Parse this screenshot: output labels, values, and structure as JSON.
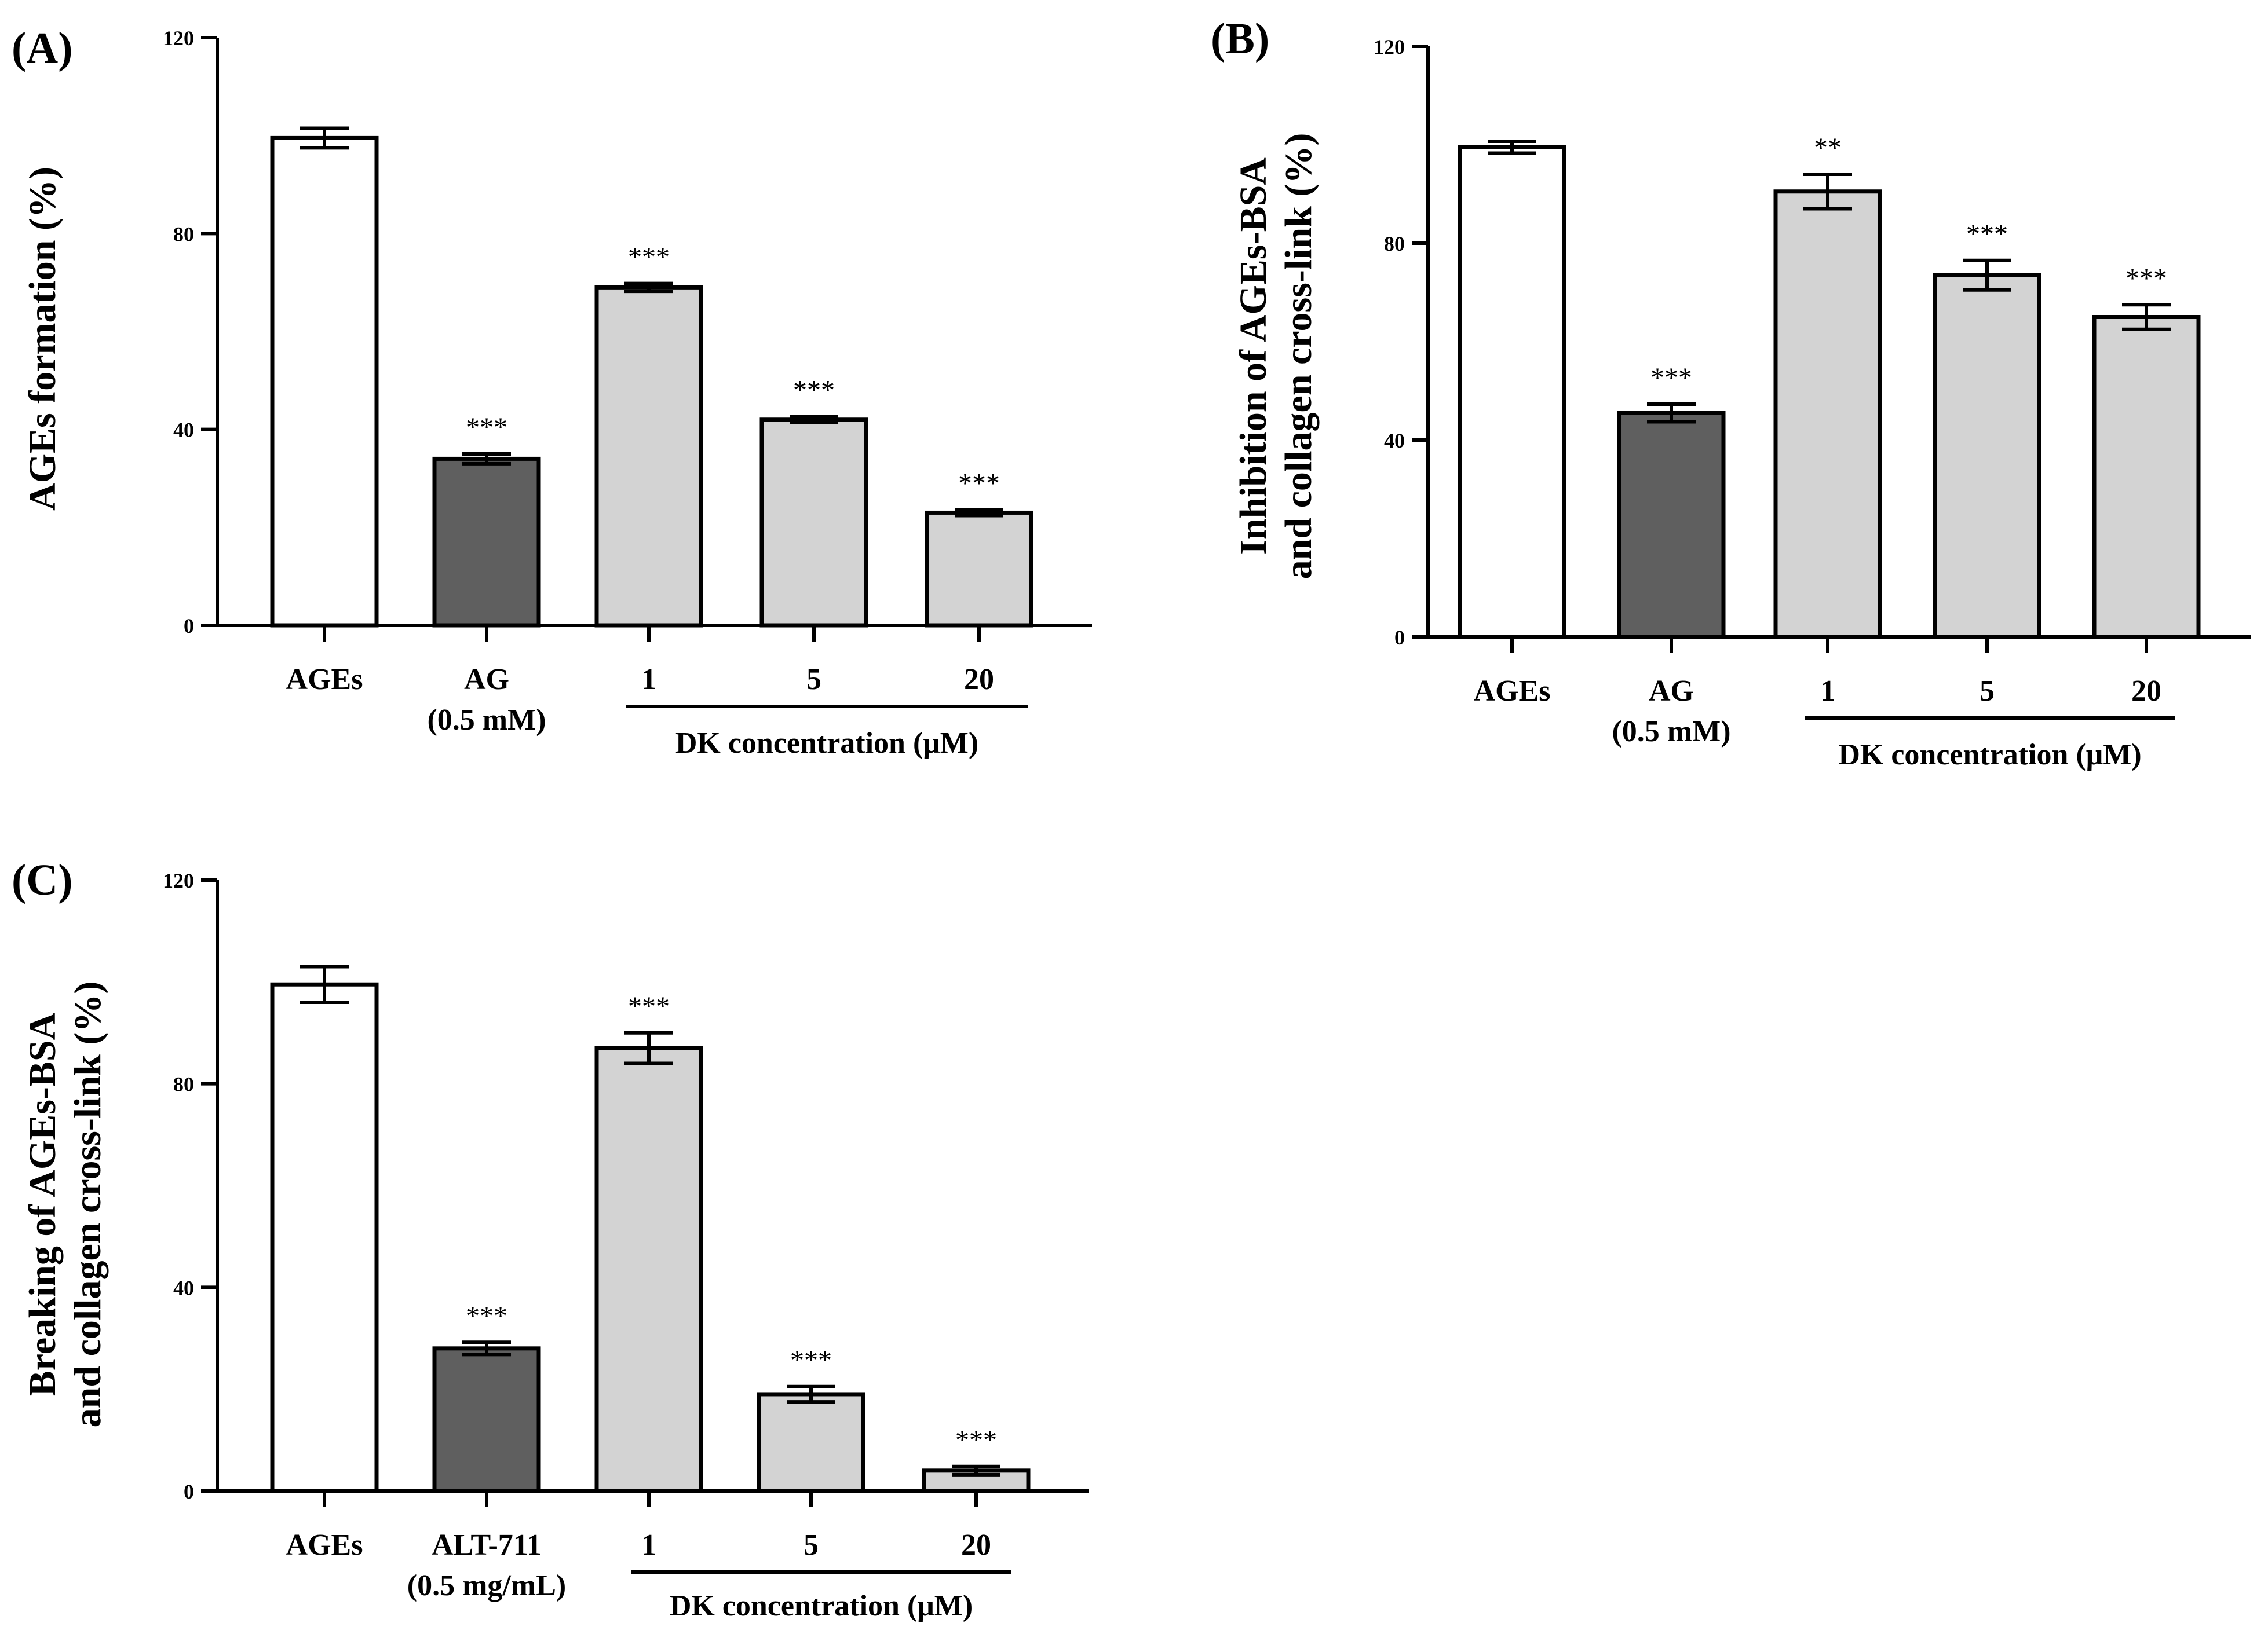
{
  "colors": {
    "control": "#ffffff",
    "positive": "#5f5f5f",
    "dk": "#d3d3d3",
    "axis": "#000000"
  },
  "chart_data": [
    {
      "panel": "(A)",
      "type": "bar",
      "ylabel": "AGEs formation (%)",
      "ylabel_lines": [
        "AGEs formation (%)"
      ],
      "ylim": [
        0,
        120
      ],
      "yticks": [
        "0",
        "40",
        "80",
        "120"
      ],
      "categories": [
        "AGEs",
        "AG",
        "1",
        "5",
        "20"
      ],
      "category_sublabels": [
        "",
        "(0.5 mM)",
        "",
        "",
        ""
      ],
      "group_label": "DK concentration  (μM)",
      "values": [
        99.5,
        34,
        69,
        42,
        23
      ],
      "errors": [
        2,
        1,
        0.8,
        0.6,
        0.6
      ],
      "significance": [
        "",
        "***",
        "***",
        "***",
        "***"
      ],
      "bar_styles": [
        "control",
        "positive",
        "dk",
        "dk",
        "dk"
      ]
    },
    {
      "panel": "(B)",
      "type": "bar",
      "ylabel": "Inhibition of AGEs-BSA and collagen cross-link (%)",
      "ylabel_lines": [
        "Inhibition of AGEs-BSA",
        "and collagen cross-link (%)"
      ],
      "ylim": [
        0,
        120
      ],
      "yticks": [
        "0",
        "40",
        "80",
        "120"
      ],
      "categories": [
        "AGEs",
        "AG",
        "1",
        "5",
        "20"
      ],
      "category_sublabels": [
        "",
        "(0.5 mM)",
        "",
        "",
        ""
      ],
      "group_label": "DK concentration  (μM)",
      "values": [
        99.5,
        45.5,
        90.5,
        73.5,
        65
      ],
      "errors": [
        1.2,
        1.8,
        3.5,
        3,
        2.5
      ],
      "significance": [
        "",
        "***",
        "**",
        "***",
        "***"
      ],
      "bar_styles": [
        "control",
        "positive",
        "dk",
        "dk",
        "dk"
      ]
    },
    {
      "panel": "(C)",
      "type": "bar",
      "ylabel": "Breaking of AGEs-BSA and collagen cross-link (%)",
      "ylabel_lines": [
        "Breaking of AGEs-BSA",
        "and collagen cross-link (%)"
      ],
      "ylim": [
        0,
        120
      ],
      "yticks": [
        "0",
        "40",
        "80",
        "120"
      ],
      "categories": [
        "AGEs",
        "ALT-711",
        "1",
        "5",
        "20"
      ],
      "category_sublabels": [
        "",
        "(0.5 mg/mL)",
        "",
        "",
        ""
      ],
      "group_label": "DK concentration  (μM)",
      "values": [
        99.5,
        28,
        87,
        19,
        4
      ],
      "errors": [
        3.5,
        1.2,
        3,
        1.5,
        0.8
      ],
      "significance": [
        "",
        "***",
        "***",
        "***",
        "***"
      ],
      "bar_styles": [
        "control",
        "positive",
        "dk",
        "dk",
        "dk"
      ]
    }
  ]
}
